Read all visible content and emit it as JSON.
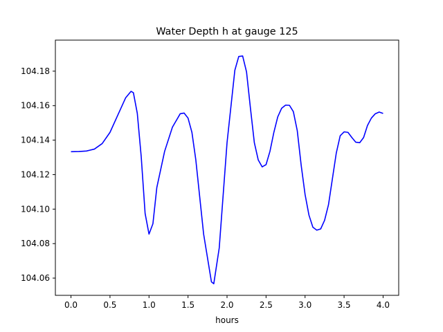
{
  "chart_data": {
    "type": "line",
    "title": "Water Depth h at gauge 125",
    "xlabel": "hours",
    "ylabel": "",
    "xlim": [
      -0.2,
      4.2
    ],
    "ylim": [
      104.05,
      104.198
    ],
    "xticks": [
      0.0,
      0.5,
      1.0,
      1.5,
      2.0,
      2.5,
      3.0,
      3.5,
      4.0
    ],
    "xtick_labels": [
      "0.0",
      "0.5",
      "1.0",
      "1.5",
      "2.0",
      "2.5",
      "3.0",
      "3.5",
      "4.0"
    ],
    "yticks": [
      104.06,
      104.08,
      104.1,
      104.12,
      104.14,
      104.16,
      104.18
    ],
    "ytick_labels": [
      "104.06",
      "104.08",
      "104.10",
      "104.12",
      "104.14",
      "104.16",
      "104.18"
    ],
    "grid": false,
    "series": [
      {
        "color": "#0000ff",
        "points": [
          [
            0.0,
            104.1333
          ],
          [
            0.1,
            104.1334
          ],
          [
            0.2,
            104.1337
          ],
          [
            0.3,
            104.1348
          ],
          [
            0.4,
            104.138
          ],
          [
            0.5,
            104.1445
          ],
          [
            0.6,
            104.1545
          ],
          [
            0.7,
            104.1645
          ],
          [
            0.77,
            104.1683
          ],
          [
            0.8,
            104.1675
          ],
          [
            0.85,
            104.1555
          ],
          [
            0.9,
            104.1305
          ],
          [
            0.95,
            104.0975
          ],
          [
            1.0,
            104.0855
          ],
          [
            1.05,
            104.0915
          ],
          [
            1.1,
            104.1125
          ],
          [
            1.2,
            104.1335
          ],
          [
            1.3,
            104.1475
          ],
          [
            1.4,
            104.1553
          ],
          [
            1.45,
            104.1557
          ],
          [
            1.5,
            104.1528
          ],
          [
            1.55,
            104.1445
          ],
          [
            1.6,
            104.1285
          ],
          [
            1.7,
            104.0855
          ],
          [
            1.8,
            104.0578
          ],
          [
            1.83,
            104.0567
          ],
          [
            1.9,
            104.0775
          ],
          [
            2.0,
            104.1385
          ],
          [
            2.1,
            104.1805
          ],
          [
            2.15,
            104.1885
          ],
          [
            2.2,
            104.1888
          ],
          [
            2.25,
            104.1795
          ],
          [
            2.3,
            104.1585
          ],
          [
            2.35,
            104.1385
          ],
          [
            2.4,
            104.1285
          ],
          [
            2.45,
            104.1245
          ],
          [
            2.5,
            104.1258
          ],
          [
            2.55,
            104.1335
          ],
          [
            2.6,
            104.1445
          ],
          [
            2.65,
            104.1535
          ],
          [
            2.7,
            104.1585
          ],
          [
            2.75,
            104.1603
          ],
          [
            2.8,
            104.1602
          ],
          [
            2.85,
            104.1565
          ],
          [
            2.9,
            104.1455
          ],
          [
            2.95,
            104.1255
          ],
          [
            3.0,
            104.1085
          ],
          [
            3.05,
            104.0965
          ],
          [
            3.1,
            104.0895
          ],
          [
            3.15,
            104.0878
          ],
          [
            3.2,
            104.0885
          ],
          [
            3.25,
            104.0935
          ],
          [
            3.3,
            104.1025
          ],
          [
            3.35,
            104.1175
          ],
          [
            3.4,
            104.1325
          ],
          [
            3.45,
            104.1425
          ],
          [
            3.5,
            104.1448
          ],
          [
            3.55,
            104.1445
          ],
          [
            3.6,
            104.1415
          ],
          [
            3.65,
            104.1388
          ],
          [
            3.7,
            104.1385
          ],
          [
            3.75,
            104.1415
          ],
          [
            3.8,
            104.1485
          ],
          [
            3.85,
            104.1528
          ],
          [
            3.9,
            104.1553
          ],
          [
            3.95,
            104.1563
          ],
          [
            4.0,
            104.1555
          ]
        ]
      }
    ]
  }
}
